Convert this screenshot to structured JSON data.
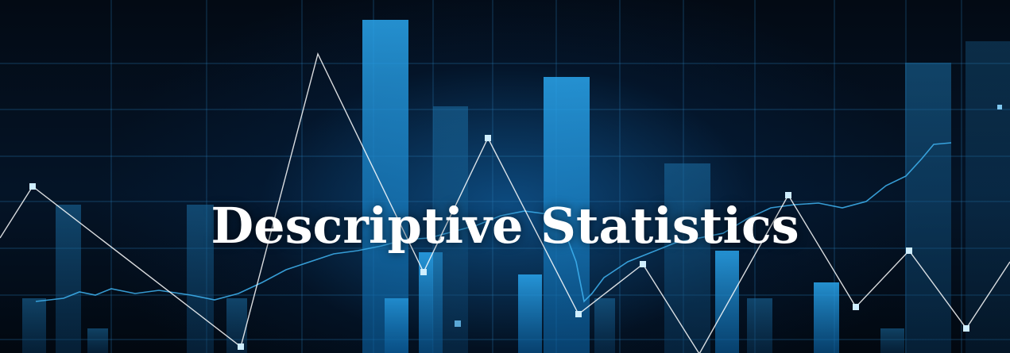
{
  "banner": {
    "title": "Descriptive Statistics",
    "colors": {
      "background": "#02060c",
      "accent": "#1e9ae0",
      "grid": "#2a7fb8",
      "line": "#ffffff",
      "title": "#ffffff"
    }
  }
}
